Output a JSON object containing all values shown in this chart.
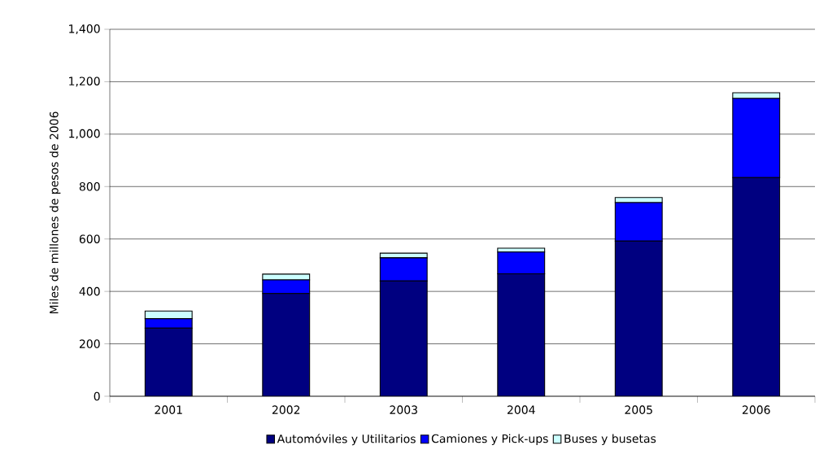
{
  "chart_data": {
    "type": "bar",
    "stacked": true,
    "ylabel": "Miles de millones de pesos de 2006",
    "categories": [
      "2001",
      "2002",
      "2003",
      "2004",
      "2005",
      "2006"
    ],
    "series": [
      {
        "name": "Automóviles y Utilitarios",
        "color": "#000080",
        "values": [
          260,
          392,
          440,
          467,
          592,
          834
        ]
      },
      {
        "name": "Camiones y Pick-ups",
        "color": "#0000ff",
        "values": [
          36,
          52,
          88,
          83,
          147,
          302
        ]
      },
      {
        "name": "Buses y busetas",
        "color": "#ccffff",
        "values": [
          29,
          22,
          18,
          15,
          19,
          22
        ]
      }
    ],
    "ylim": [
      0,
      1400
    ],
    "yticks": [
      0,
      200,
      400,
      600,
      800,
      {
        "value": 1000,
        "label": "1,000"
      },
      {
        "value": 1200,
        "label": "1,200"
      },
      {
        "value": 1400,
        "label": "1,400"
      }
    ],
    "grid": "y",
    "legend": "bottom"
  }
}
